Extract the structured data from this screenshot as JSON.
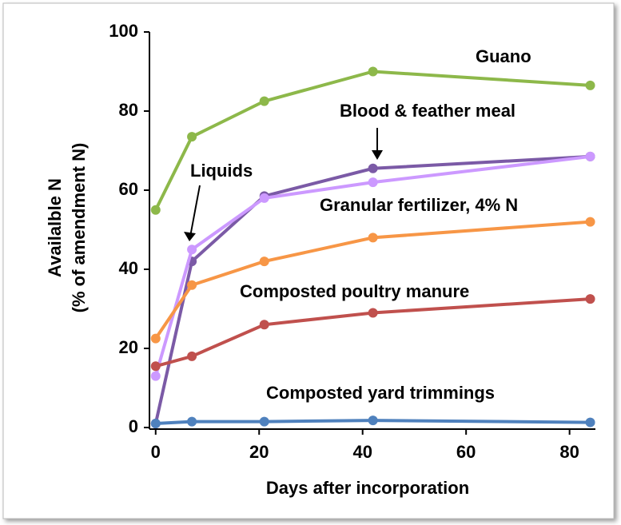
{
  "chart_data": {
    "type": "line",
    "xlabel": "Days after incorporation",
    "ylabel": [
      "Availalble N",
      "(% of amendment N)"
    ],
    "x": [
      0,
      7,
      21,
      42,
      84
    ],
    "series": [
      {
        "name": "Guano",
        "color": "#8db84a",
        "values": [
          55,
          73.5,
          82.5,
          90,
          86.5
        ]
      },
      {
        "name": "Blood & feather meal",
        "color": "#7b5aa6",
        "values": [
          1,
          42,
          58.5,
          65.5,
          68.5
        ]
      },
      {
        "name": "Liquids",
        "color": "#cc99ff",
        "values": [
          13,
          45,
          58,
          62,
          68.5
        ]
      },
      {
        "name": "Granular fertilizer, 4% N",
        "color": "#f79646",
        "values": [
          22.5,
          36,
          42,
          48,
          52
        ]
      },
      {
        "name": "Composted poultry manure",
        "color": "#c0504d",
        "values": [
          15.5,
          18,
          26,
          29,
          32.5
        ]
      },
      {
        "name": "Composted yard trimmings",
        "color": "#4f81bd",
        "values": [
          1,
          1.5,
          1.5,
          1.8,
          1.3
        ]
      }
    ],
    "xlim": [
      -1.2,
      85
    ],
    "xticks": [
      0,
      20,
      40,
      60,
      80
    ],
    "ylim": [
      0,
      100
    ],
    "yticks": [
      0,
      20,
      40,
      60,
      80,
      100
    ]
  }
}
